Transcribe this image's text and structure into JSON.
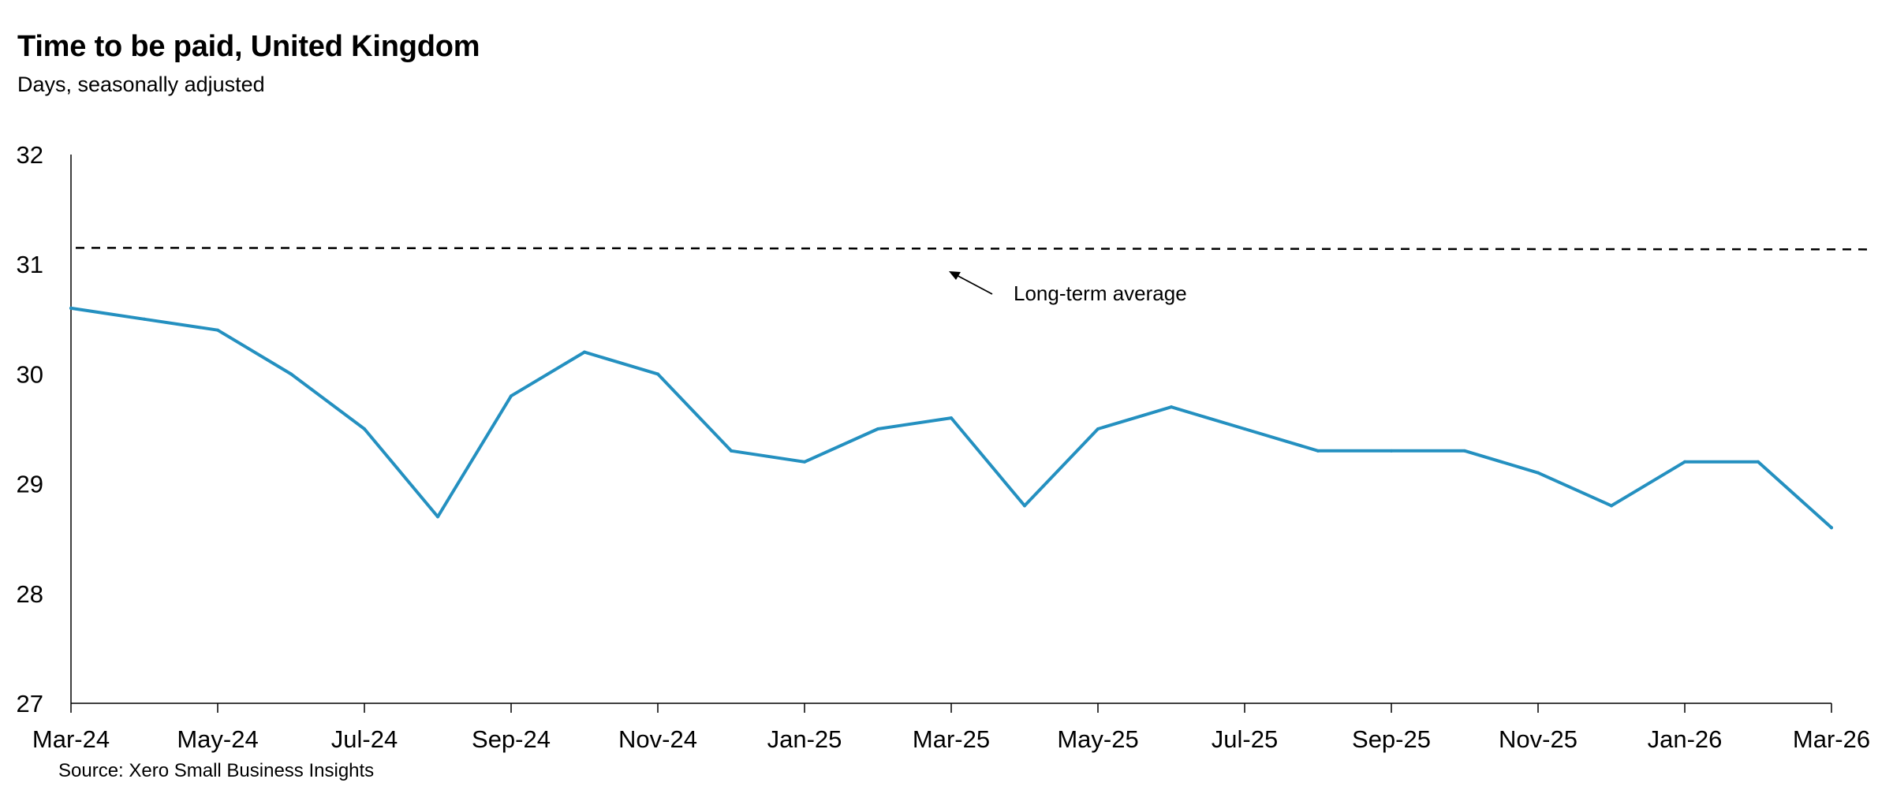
{
  "chart_data": {
    "type": "line",
    "title": "Time to be paid, United Kingdom",
    "subtitle": "Days, seasonally adjusted",
    "source": "Source: Xero Small Business Insights",
    "xlabel": "",
    "ylabel": "",
    "ylim": [
      27,
      32
    ],
    "yticks": [
      27,
      28,
      29,
      30,
      31,
      32
    ],
    "grid": false,
    "x": [
      "Mar-24",
      "Apr-24",
      "May-24",
      "Jun-24",
      "Jul-24",
      "Aug-24",
      "Sep-24",
      "Oct-24",
      "Nov-24",
      "Dec-24",
      "Jan-25",
      "Feb-25",
      "Mar-25",
      "Apr-25",
      "May-25",
      "Jun-25",
      "Jul-25",
      "Aug-25",
      "Sep-25",
      "Oct-25",
      "Nov-25",
      "Dec-25",
      "Jan-26",
      "Feb-26",
      "Mar-26"
    ],
    "xtick_labels": [
      "Mar-24",
      "May-24",
      "Jul-24",
      "Sep-24",
      "Nov-24",
      "Jan-25",
      "Mar-25",
      "May-25",
      "Jul-25",
      "Sep-25",
      "Nov-25",
      "Jan-26",
      "Mar-26"
    ],
    "series": [
      {
        "values": [
          30.6,
          30.5,
          30.4,
          30.0,
          29.5,
          28.7,
          29.8,
          30.2,
          30.0,
          29.3,
          29.2,
          29.5,
          29.6,
          28.8,
          29.5,
          29.7,
          29.5,
          29.3,
          29.3,
          29.3,
          29.1,
          28.8,
          29.2,
          29.2,
          28.6
        ],
        "color": "#2490C0"
      }
    ],
    "reference_line": {
      "label": "Long-term average",
      "value": 31.15,
      "style": "dashed",
      "color": "#000000"
    }
  }
}
